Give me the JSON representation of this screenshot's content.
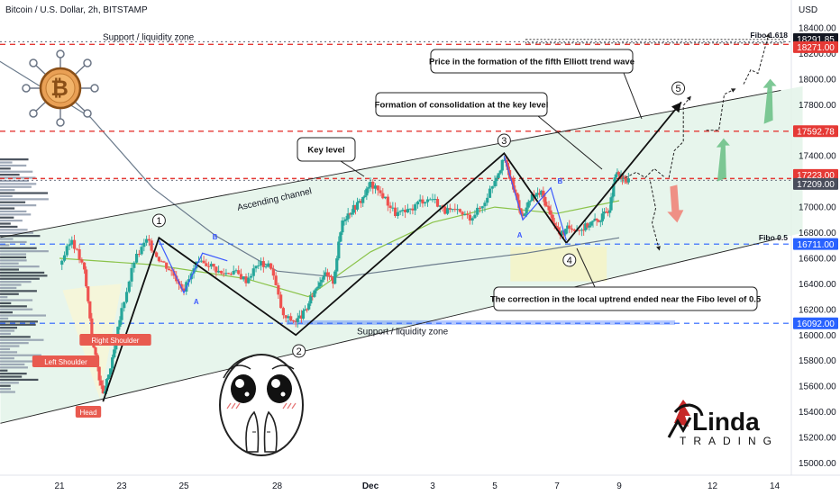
{
  "header": {
    "symbol_title": "Bitcoin / U.S. Dollar, 2h, BITSTAMP",
    "currency": "USD"
  },
  "colors": {
    "up": "#26a69a",
    "down": "#ef5350",
    "channel_fill": "#e3f3e9",
    "resistance": "#ef5350",
    "support": "#2962ff",
    "accent_red": "#e53935",
    "wave_line": "#111111",
    "arrow_green": "#6fc28a"
  },
  "chart_data": {
    "type": "candlestick",
    "title": "Bitcoin / U.S. Dollar, 2h, BITSTAMP",
    "ylim": [
      14900,
      18450
    ],
    "x_ticks": [
      {
        "label": "21",
        "day": 0
      },
      {
        "label": "23",
        "day": 2
      },
      {
        "label": "25",
        "day": 4
      },
      {
        "label": "28",
        "day": 7
      },
      {
        "label": "Dec",
        "day": 10
      },
      {
        "label": "3",
        "day": 12
      },
      {
        "label": "5",
        "day": 14
      },
      {
        "label": "7",
        "day": 16
      },
      {
        "label": "9",
        "day": 18
      },
      {
        "label": "12",
        "day": 21
      },
      {
        "label": "14",
        "day": 23
      }
    ],
    "y_ticks": [
      15000,
      15200,
      15400,
      15600,
      15800,
      16000,
      16200,
      16400,
      16600,
      16800,
      17000,
      17200,
      17400,
      17600,
      17800,
      18000,
      18200,
      18400
    ],
    "key_levels": [
      {
        "value": 18291.85,
        "label": "18291.85",
        "color": "#ffffff",
        "bg": "#131722",
        "style": "dotted"
      },
      {
        "value": 18271.0,
        "label": "18271.00",
        "color": "#ffffff",
        "bg": "#e53935",
        "style": "dashed"
      },
      {
        "value": 17592.78,
        "label": "17592.78",
        "color": "#ffffff",
        "bg": "#e53935",
        "style": "dashed"
      },
      {
        "value": 17223.0,
        "label": "17223.00",
        "color": "#ffffff",
        "bg": "#e53935",
        "style": "solid-thin"
      },
      {
        "value": 17209.0,
        "label": "17209.00",
        "color": "#ffffff",
        "bg": "#4a4e5c",
        "style": "dotted"
      },
      {
        "value": 16711.0,
        "label": "16711.00",
        "color": "#ffffff",
        "bg": "#2962ff",
        "style": "dashed"
      },
      {
        "value": 16092.0,
        "label": "16092.00",
        "color": "#ffffff",
        "bg": "#2962ff",
        "style": "dashed"
      }
    ],
    "price_path": [
      [
        0,
        16550
      ],
      [
        0.4,
        16750
      ],
      [
        0.8,
        16500
      ],
      [
        1.1,
        15900
      ],
      [
        1.4,
        15520
      ],
      [
        1.7,
        15800
      ],
      [
        2.0,
        16200
      ],
      [
        2.4,
        16580
      ],
      [
        2.8,
        16740
      ],
      [
        3.2,
        16600
      ],
      [
        3.6,
        16500
      ],
      [
        4.0,
        16360
      ],
      [
        4.4,
        16550
      ],
      [
        4.8,
        16560
      ],
      [
        5.2,
        16480
      ],
      [
        5.6,
        16500
      ],
      [
        6.0,
        16430
      ],
      [
        6.4,
        16560
      ],
      [
        6.8,
        16540
      ],
      [
        7.2,
        16140
      ],
      [
        7.6,
        16110
      ],
      [
        7.9,
        16180
      ],
      [
        8.2,
        16350
      ],
      [
        8.5,
        16480
      ],
      [
        8.8,
        16420
      ],
      [
        9.1,
        16900
      ],
      [
        9.4,
        16980
      ],
      [
        9.7,
        17050
      ],
      [
        10.0,
        17180
      ],
      [
        10.4,
        17090
      ],
      [
        10.8,
        16950
      ],
      [
        11.2,
        16960
      ],
      [
        11.6,
        17050
      ],
      [
        12.0,
        17070
      ],
      [
        12.4,
        16970
      ],
      [
        12.8,
        16960
      ],
      [
        13.2,
        16920
      ],
      [
        13.6,
        17010
      ],
      [
        14.0,
        17220
      ],
      [
        14.3,
        17370
      ],
      [
        14.6,
        17150
      ],
      [
        14.9,
        16920
      ],
      [
        15.2,
        17080
      ],
      [
        15.5,
        17110
      ],
      [
        15.8,
        16930
      ],
      [
        16.1,
        16780
      ],
      [
        16.4,
        16840
      ],
      [
        16.8,
        16830
      ],
      [
        17.1,
        16880
      ],
      [
        17.4,
        16910
      ],
      [
        17.7,
        17000
      ],
      [
        17.9,
        17260
      ],
      [
        18.1,
        17225
      ],
      [
        18.3,
        17200
      ]
    ],
    "moving_averages": [
      {
        "name": "ma_fast",
        "color": "#8bc34a",
        "points": [
          [
            0,
            16600
          ],
          [
            3,
            16550
          ],
          [
            6,
            16440
          ],
          [
            8,
            16300
          ],
          [
            10,
            16650
          ],
          [
            12,
            16880
          ],
          [
            14,
            17000
          ],
          [
            16,
            16950
          ],
          [
            18,
            17050
          ]
        ]
      },
      {
        "name": "ma_slow",
        "color": "#6b7b8c",
        "points": [
          [
            -2,
            18150
          ],
          [
            1,
            17700
          ],
          [
            3,
            17150
          ],
          [
            5,
            16780
          ],
          [
            7,
            16500
          ],
          [
            9,
            16450
          ],
          [
            12,
            16550
          ],
          [
            15,
            16640
          ],
          [
            18,
            16760
          ]
        ]
      }
    ],
    "channel": {
      "upper": [
        [
          0,
          16850
        ],
        [
          26,
          18040
        ]
      ],
      "lower": [
        [
          0,
          15420
        ],
        [
          26,
          16920
        ]
      ]
    },
    "elliott_waves": [
      {
        "label": "1",
        "day": 3.2,
        "value": 16740
      },
      {
        "label": "2",
        "day": 7.6,
        "value": 16000
      },
      {
        "label": "3",
        "day": 14.3,
        "value": 17420
      },
      {
        "label": "4",
        "day": 16.3,
        "value": 16760
      },
      {
        "label": "5",
        "day": 20.5,
        "value": 17930
      }
    ],
    "abc_labels": [
      {
        "label": "A",
        "day": 5.0,
        "value": 16300
      },
      {
        "label": "B",
        "day": 4.2,
        "value": 16700
      },
      {
        "label": "A",
        "day": 15.0,
        "value": 16860
      },
      {
        "label": "B",
        "day": 16.0,
        "value": 17190
      }
    ],
    "pattern_labels": [
      {
        "label": "Left Shoulder",
        "day": 0.2,
        "value": 15880
      },
      {
        "label": "Head",
        "day": 1.2,
        "value": 15450
      },
      {
        "label": "Right Shoulder",
        "day": 2.0,
        "value": 16070
      }
    ],
    "annotations": {
      "fibo_1618": "Fibo 1.618",
      "fibo_05": "Fibo 0.5",
      "support_top": "Support / liquidity zone",
      "support_bottom": "Support / liquidity zone",
      "ascending_channel": "Ascending channel",
      "key_level": "Key level",
      "consolidation": "Formation of consolidation at the key level",
      "fifth_wave": "Price in the formation of the fifth Elliott trend wave",
      "correction": "The correction in the local uptrend ended near the Fibo level of 0.5"
    }
  },
  "branding": {
    "logo_line1": "Linda",
    "logo_line2": "TRADING"
  }
}
